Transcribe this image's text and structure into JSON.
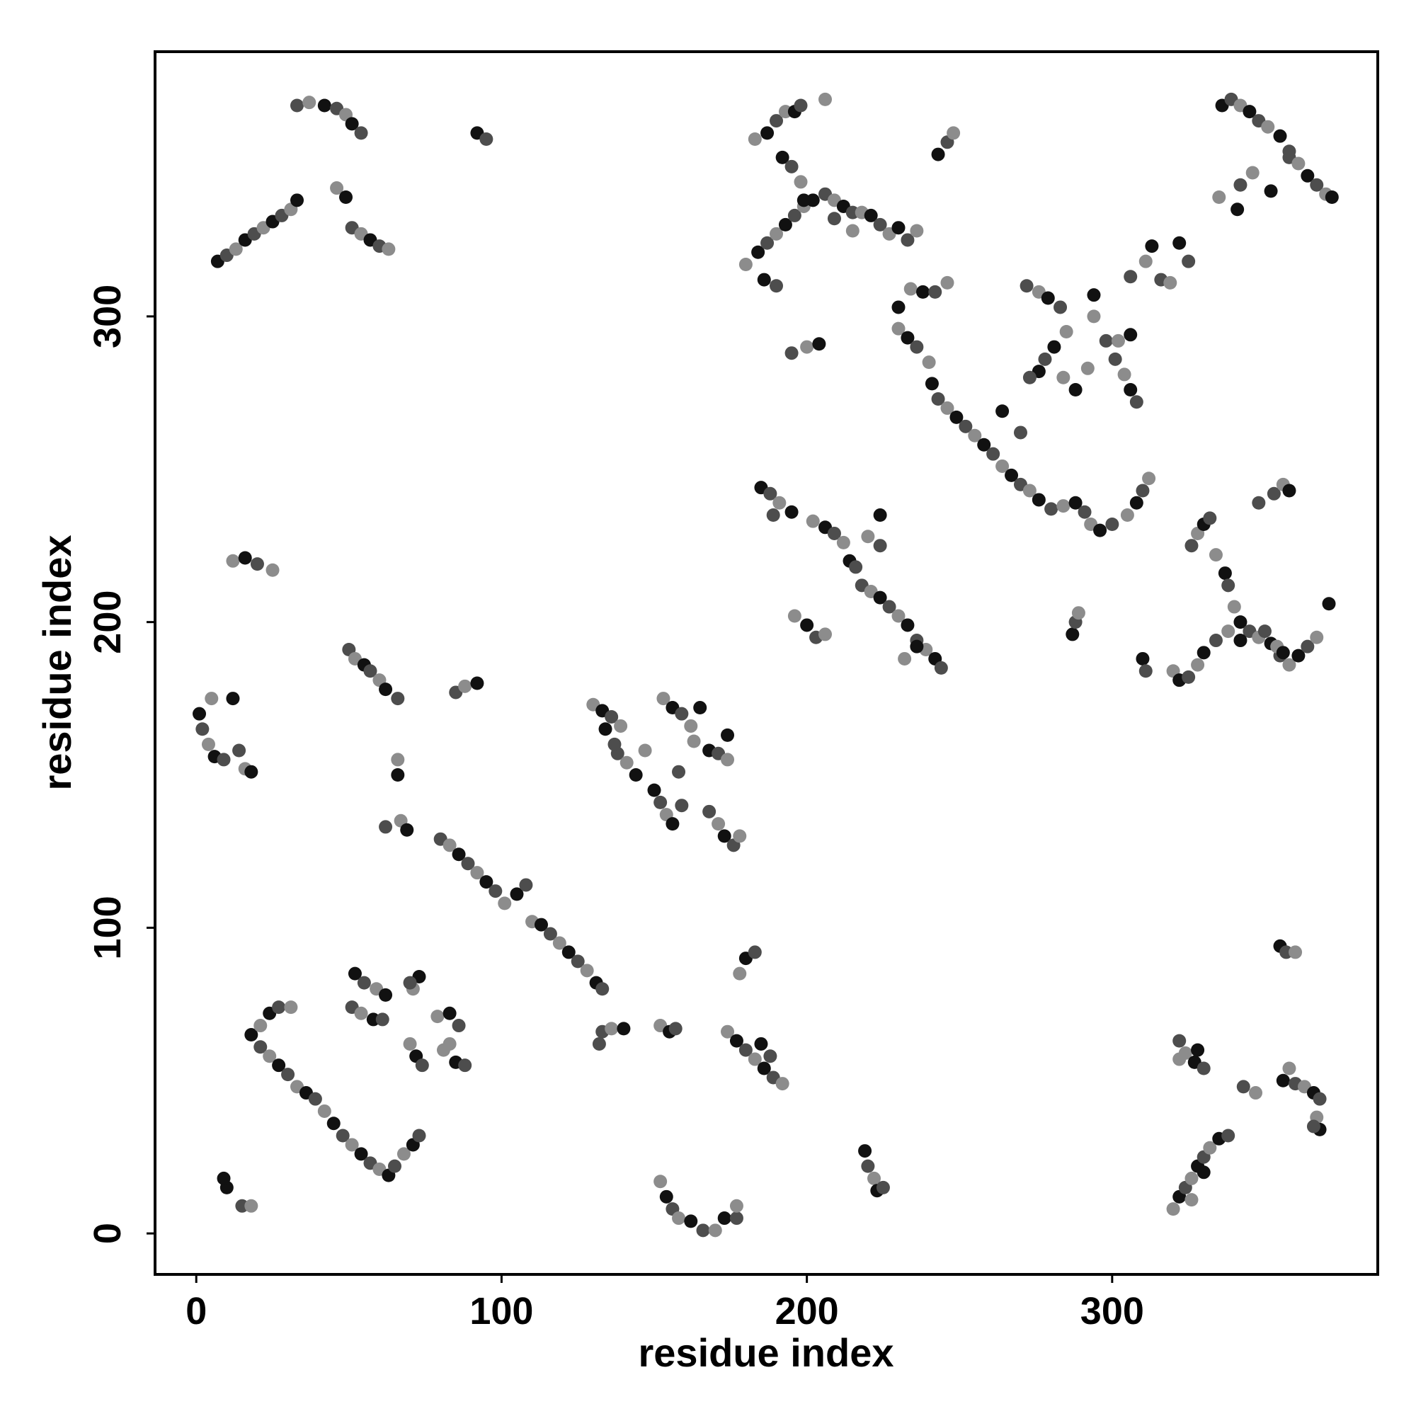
{
  "chart_data": {
    "type": "scatter",
    "xlabel": "residue index",
    "ylabel": "residue index",
    "xlim": [
      -13.5,
      387
    ],
    "ylim": [
      -13.4,
      386.6
    ],
    "xticks": [
      0,
      100,
      200,
      300
    ],
    "yticks": [
      0,
      100,
      200,
      300
    ],
    "palette": [
      "#111111",
      "#4d4d4d",
      "#8c8c8c"
    ],
    "x": [
      7,
      10,
      13,
      16,
      19,
      22,
      25,
      28,
      31,
      33,
      33,
      37,
      42,
      46,
      49,
      51,
      54,
      46,
      49,
      51,
      54,
      57,
      60,
      63,
      92,
      95,
      12,
      16,
      20,
      25,
      1,
      2,
      4,
      6,
      9,
      5,
      12,
      14,
      16,
      18,
      50,
      52,
      55,
      57,
      60,
      62,
      66,
      66,
      66,
      62,
      67,
      69,
      85,
      88,
      92,
      80,
      83,
      86,
      89,
      92,
      95,
      98,
      101,
      105,
      108,
      110,
      113,
      116,
      119,
      122,
      125,
      128,
      131,
      133,
      130,
      133,
      136,
      139,
      134,
      138,
      141,
      144,
      137,
      147,
      150,
      152,
      154,
      156,
      159,
      153,
      156,
      159,
      162,
      165,
      158,
      163,
      168,
      171,
      174,
      174,
      168,
      171,
      173,
      176,
      178,
      18,
      21,
      24,
      27,
      30,
      33,
      36,
      39,
      42,
      45,
      48,
      51,
      54,
      57,
      60,
      63,
      65,
      68,
      71,
      73,
      21,
      24,
      27,
      31,
      52,
      55,
      59,
      62,
      51,
      54,
      58,
      61,
      70,
      72,
      74,
      71,
      73,
      70,
      79,
      83,
      86,
      81,
      85,
      88,
      83,
      10,
      15,
      18,
      9,
      133,
      136,
      140,
      132,
      152,
      155,
      157,
      174,
      177,
      180,
      183,
      186,
      189,
      192,
      185,
      188,
      178,
      180,
      183,
      152,
      154,
      156,
      158,
      162,
      166,
      170,
      173,
      177,
      177,
      219,
      220,
      222,
      223,
      225,
      320,
      322,
      324,
      326,
      328,
      330,
      332,
      335,
      338,
      326,
      330,
      322,
      324,
      327,
      330,
      322,
      328,
      343,
      347,
      356,
      360,
      363,
      366,
      368,
      367,
      368,
      366,
      358,
      355,
      357,
      360,
      185,
      188,
      191,
      195,
      189,
      202,
      206,
      209,
      212,
      214,
      216,
      220,
      224,
      218,
      221,
      224,
      227,
      230,
      233,
      236,
      239,
      242,
      244,
      232,
      236,
      224,
      196,
      200,
      203,
      206,
      287,
      288,
      289,
      310,
      311,
      230,
      233,
      236,
      240,
      241,
      243,
      246,
      249,
      252,
      255,
      258,
      261,
      264,
      267,
      270,
      273,
      276,
      280,
      284,
      288,
      291,
      293,
      296,
      300,
      305,
      308,
      310,
      312,
      264,
      270,
      234,
      238,
      242,
      246,
      230,
      195,
      200,
      204,
      272,
      276,
      279,
      283,
      285,
      281,
      278,
      284,
      276,
      273,
      294,
      294,
      298,
      302,
      306,
      301,
      304,
      306,
      308,
      292,
      288,
      306,
      311,
      313,
      316,
      319,
      322,
      325,
      180,
      184,
      187,
      190,
      193,
      196,
      199,
      202,
      206,
      209,
      212,
      215,
      218,
      221,
      224,
      227,
      230,
      233,
      236,
      186,
      190,
      183,
      187,
      190,
      193,
      196,
      198,
      206,
      192,
      195,
      198,
      199,
      209,
      215,
      243,
      246,
      248,
      336,
      339,
      342,
      345,
      348,
      351,
      355,
      358,
      361,
      364,
      367,
      370,
      372,
      342,
      346,
      352,
      358,
      335,
      341,
      326,
      328,
      330,
      332,
      334,
      337,
      338,
      340,
      342,
      345,
      348,
      352,
      355,
      358,
      361,
      364,
      367,
      371,
      353,
      356,
      358,
      348,
      320,
      322,
      325,
      328,
      330,
      334,
      338,
      342,
      350,
      354,
      356
    ],
    "values": [
      318,
      320,
      322,
      325,
      327,
      329,
      331,
      333,
      335,
      338,
      369,
      370,
      369,
      368,
      366,
      363,
      360,
      342,
      339,
      329,
      327,
      325,
      323,
      322,
      360,
      358,
      220,
      221,
      219,
      217,
      170,
      165,
      160,
      156,
      155,
      175,
      175,
      158,
      152,
      151,
      191,
      188,
      186,
      184,
      181,
      178,
      175,
      155,
      150,
      133,
      135,
      132,
      177,
      179,
      180,
      129,
      127,
      124,
      121,
      118,
      115,
      112,
      108,
      111,
      114,
      102,
      101,
      98,
      95,
      92,
      89,
      86,
      82,
      80,
      173,
      171,
      169,
      166,
      165,
      157,
      154,
      150,
      160,
      158,
      145,
      141,
      137,
      134,
      140,
      175,
      172,
      170,
      166,
      172,
      151,
      161,
      158,
      157,
      155,
      163,
      138,
      134,
      130,
      127,
      130,
      65,
      61,
      58,
      55,
      52,
      48,
      46,
      44,
      40,
      36,
      32,
      29,
      26,
      23,
      21,
      19,
      22,
      26,
      29,
      32,
      68,
      72,
      74,
      74,
      85,
      82,
      80,
      78,
      74,
      72,
      70,
      70,
      62,
      58,
      55,
      80,
      84,
      82,
      71,
      72,
      68,
      60,
      56,
      55,
      62,
      15,
      9,
      9,
      18,
      66,
      67,
      67,
      62,
      68,
      66,
      67,
      66,
      63,
      60,
      57,
      54,
      51,
      49,
      62,
      58,
      85,
      90,
      92,
      17,
      12,
      8,
      5,
      4,
      1,
      1,
      5,
      5,
      9,
      27,
      22,
      18,
      14,
      15,
      8,
      12,
      15,
      18,
      22,
      25,
      28,
      31,
      32,
      11,
      20,
      63,
      59,
      56,
      54,
      57,
      60,
      48,
      46,
      50,
      49,
      48,
      46,
      44,
      38,
      34,
      35,
      54,
      94,
      92,
      92,
      244,
      242,
      239,
      236,
      235,
      233,
      231,
      229,
      226,
      220,
      218,
      228,
      235,
      212,
      210,
      208,
      205,
      202,
      199,
      194,
      191,
      188,
      185,
      188,
      192,
      225,
      202,
      199,
      195,
      196,
      196,
      200,
      203,
      188,
      184,
      296,
      293,
      290,
      285,
      278,
      273,
      270,
      267,
      264,
      261,
      258,
      255,
      251,
      248,
      245,
      243,
      240,
      237,
      238,
      239,
      236,
      232,
      230,
      232,
      235,
      239,
      243,
      247,
      269,
      262,
      309,
      308,
      308,
      311,
      303,
      288,
      290,
      291,
      310,
      308,
      306,
      303,
      295,
      290,
      286,
      280,
      282,
      280,
      300,
      307,
      292,
      292,
      294,
      286,
      281,
      276,
      272,
      283,
      276,
      313,
      318,
      323,
      312,
      311,
      324,
      318,
      317,
      321,
      324,
      327,
      330,
      333,
      336,
      338,
      340,
      338,
      336,
      334,
      334,
      333,
      330,
      327,
      329,
      325,
      328,
      312,
      310,
      358,
      360,
      364,
      367,
      367,
      369,
      371,
      352,
      349,
      344,
      338,
      332,
      328,
      353,
      357,
      360,
      369,
      371,
      369,
      367,
      364,
      362,
      359,
      352,
      350,
      346,
      343,
      340,
      339,
      343,
      347,
      341,
      354,
      339,
      335,
      225,
      229,
      232,
      234,
      222,
      216,
      212,
      205,
      200,
      197,
      195,
      193,
      189,
      186,
      189,
      192,
      195,
      206,
      242,
      245,
      243,
      239,
      184,
      181,
      182,
      186,
      190,
      194,
      197,
      194,
      197,
      192,
      190
    ]
  }
}
